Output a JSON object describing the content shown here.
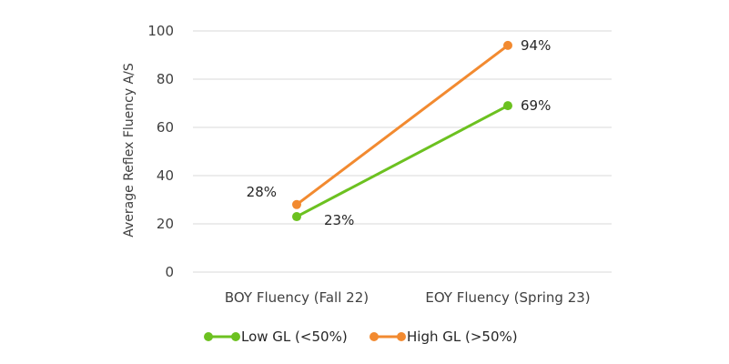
{
  "chart_data": {
    "type": "line",
    "title": "",
    "xlabel": "",
    "ylabel": "Average Reflex Fluency A/S",
    "categories": [
      "BOY Fluency (Fall 22)",
      "EOY Fluency (Spring 23)"
    ],
    "ylim": [
      0,
      100
    ],
    "yticks": [
      0,
      20,
      40,
      60,
      80,
      100
    ],
    "grid": true,
    "legend_position": "bottom",
    "series": [
      {
        "name": "Low GL (<50%)",
        "values": [
          23,
          69
        ],
        "labels": [
          "23%",
          "69%"
        ],
        "color": "#6cc120"
      },
      {
        "name": "High GL (>50%)",
        "values": [
          28,
          94
        ],
        "labels": [
          "28%",
          "94%"
        ],
        "color": "#f28a30"
      }
    ]
  }
}
